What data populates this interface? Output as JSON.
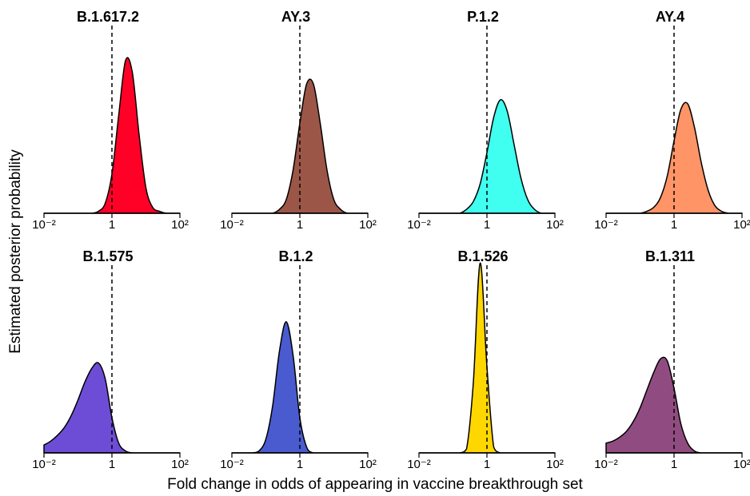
{
  "figure": {
    "xlabel": "Fold change in odds of appearing in vaccine breakthrough set",
    "ylabel": "Estimated posterior probability"
  },
  "chart_data": [
    {
      "type": "density",
      "title": "B.1.617.2",
      "color": "#ff0027",
      "log_x": true,
      "xlim": [
        0.01,
        100
      ],
      "xticks": [
        {
          "value": 0.01,
          "label": "10⁻²"
        },
        1,
        {
          "value": 100,
          "label": "10²"
        }
      ],
      "ylim": [
        0,
        1
      ],
      "vline": 1,
      "x": [
        0.01,
        0.0158,
        0.0251,
        0.0398,
        0.0631,
        0.1,
        0.158,
        0.251,
        0.398,
        0.631,
        1,
        1.58,
        2.51,
        3.98,
        6.31,
        10,
        15.8,
        25.1,
        39.8,
        63.1,
        100
      ],
      "values": [
        0,
        0,
        0,
        0,
        0,
        0,
        0,
        0,
        0.01,
        0.05,
        0.2,
        0.5,
        0.78,
        0.72,
        0.4,
        0.13,
        0.03,
        0.01,
        0,
        0,
        0
      ]
    },
    {
      "type": "density",
      "title": "AY.3",
      "color": "#9b5648",
      "log_x": true,
      "xlim": [
        0.01,
        100
      ],
      "xticks": [
        {
          "value": 0.01,
          "label": "10⁻²"
        },
        1,
        {
          "value": 100,
          "label": "10²"
        }
      ],
      "ylim": [
        0,
        1
      ],
      "vline": 1,
      "x": [
        0.01,
        0.0158,
        0.0251,
        0.0398,
        0.0631,
        0.1,
        0.158,
        0.251,
        0.398,
        0.631,
        1,
        1.58,
        2.51,
        3.98,
        6.31,
        10,
        15.8,
        25.1,
        39.8,
        63.1,
        100
      ],
      "values": [
        0,
        0,
        0,
        0,
        0,
        0,
        0,
        0.02,
        0.07,
        0.22,
        0.46,
        0.66,
        0.66,
        0.46,
        0.22,
        0.07,
        0.02,
        0,
        0,
        0,
        0
      ]
    },
    {
      "type": "density",
      "title": "P.1.2",
      "color": "#40fff0",
      "log_x": true,
      "xlim": [
        0.01,
        100
      ],
      "xticks": [
        {
          "value": 0.01,
          "label": "10⁻²"
        },
        1,
        {
          "value": 100,
          "label": "10²"
        }
      ],
      "ylim": [
        0,
        1
      ],
      "vline": 1,
      "x": [
        0.01,
        0.0158,
        0.0251,
        0.0398,
        0.0631,
        0.1,
        0.158,
        0.251,
        0.398,
        0.631,
        1,
        1.58,
        2.51,
        3.98,
        6.31,
        10,
        15.8,
        25.1,
        39.8,
        63.1,
        100
      ],
      "values": [
        0,
        0,
        0,
        0,
        0,
        0,
        0,
        0.02,
        0.06,
        0.15,
        0.31,
        0.49,
        0.58,
        0.52,
        0.35,
        0.18,
        0.07,
        0.02,
        0,
        0,
        0
      ]
    },
    {
      "type": "density",
      "title": "AY.4",
      "color": "#ff9466",
      "log_x": true,
      "xlim": [
        0.01,
        100
      ],
      "xticks": [
        {
          "value": 0.01,
          "label": "10⁻²"
        },
        1,
        {
          "value": 100,
          "label": "10²"
        }
      ],
      "ylim": [
        0,
        1
      ],
      "vline": 1,
      "x": [
        0.01,
        0.0158,
        0.0251,
        0.0398,
        0.0631,
        0.1,
        0.158,
        0.251,
        0.398,
        0.631,
        1,
        1.58,
        2.51,
        3.98,
        6.31,
        10,
        15.8,
        25.1,
        39.8,
        63.1,
        100
      ],
      "values": [
        0,
        0,
        0,
        0,
        0,
        0,
        0.01,
        0.03,
        0.08,
        0.19,
        0.37,
        0.53,
        0.56,
        0.44,
        0.26,
        0.12,
        0.04,
        0.01,
        0,
        0,
        0
      ]
    },
    {
      "type": "density",
      "title": "B.1.575",
      "color": "#6d4dd6",
      "log_x": true,
      "xlim": [
        0.01,
        100
      ],
      "xticks": [
        {
          "value": 0.01,
          "label": "10⁻²"
        },
        1,
        {
          "value": 100,
          "label": "10²"
        }
      ],
      "ylim": [
        0,
        1
      ],
      "vline": 1,
      "x": [
        0.01,
        0.0158,
        0.0251,
        0.0398,
        0.0631,
        0.1,
        0.158,
        0.251,
        0.398,
        0.631,
        1,
        1.58,
        2.51,
        3.98,
        6.31,
        10,
        15.8,
        25.1,
        39.8,
        63.1,
        100
      ],
      "values": [
        0.04,
        0.06,
        0.09,
        0.13,
        0.19,
        0.27,
        0.36,
        0.43,
        0.46,
        0.38,
        0.18,
        0.05,
        0.01,
        0,
        0,
        0,
        0,
        0,
        0,
        0,
        0
      ]
    },
    {
      "type": "density",
      "title": "B.1.2",
      "color": "#4a5bd0",
      "log_x": true,
      "xlim": [
        0.01,
        100
      ],
      "xticks": [
        {
          "value": 0.01,
          "label": "10⁻²"
        },
        1,
        {
          "value": 100,
          "label": "10²"
        }
      ],
      "ylim": [
        0,
        1
      ],
      "vline": 1,
      "x": [
        0.01,
        0.0158,
        0.0251,
        0.0398,
        0.0631,
        0.1,
        0.158,
        0.251,
        0.398,
        0.631,
        1,
        1.58,
        2.51,
        3.98,
        6.31,
        10,
        15.8,
        25.1,
        39.8,
        63.1,
        100
      ],
      "values": [
        0,
        0,
        0,
        0,
        0.01,
        0.07,
        0.24,
        0.52,
        0.67,
        0.5,
        0.18,
        0.03,
        0,
        0,
        0,
        0,
        0,
        0,
        0,
        0,
        0
      ]
    },
    {
      "type": "density",
      "title": "B.1.526",
      "color": "#ffd700",
      "log_x": true,
      "xlim": [
        0.01,
        100
      ],
      "xticks": [
        {
          "value": 0.01,
          "label": "10⁻²"
        },
        1,
        {
          "value": 100,
          "label": "10²"
        }
      ],
      "ylim": [
        0,
        1
      ],
      "vline": 1,
      "x": [
        0.01,
        0.0158,
        0.0251,
        0.0398,
        0.0631,
        0.1,
        0.158,
        0.251,
        0.398,
        0.631,
        1,
        1.58,
        2.51,
        3.98,
        6.31,
        10,
        15.8,
        25.1,
        39.8,
        63.1,
        100
      ],
      "values": [
        0,
        0,
        0,
        0,
        0,
        0,
        0,
        0.02,
        0.36,
        0.97,
        0.44,
        0.03,
        0,
        0,
        0,
        0,
        0,
        0,
        0,
        0,
        0
      ]
    },
    {
      "type": "density",
      "title": "B.1.311",
      "color": "#904c80",
      "log_x": true,
      "xlim": [
        0.01,
        100
      ],
      "xticks": [
        {
          "value": 0.01,
          "label": "10⁻²"
        },
        1,
        {
          "value": 100,
          "label": "10²"
        }
      ],
      "ylim": [
        0,
        1
      ],
      "vline": 1,
      "x": [
        0.01,
        0.0158,
        0.0251,
        0.0398,
        0.0631,
        0.1,
        0.158,
        0.251,
        0.398,
        0.631,
        1,
        1.58,
        2.51,
        3.98,
        6.31,
        10,
        15.8,
        25.1,
        39.8,
        63.1,
        100
      ],
      "values": [
        0.05,
        0.06,
        0.08,
        0.11,
        0.16,
        0.23,
        0.32,
        0.41,
        0.48,
        0.47,
        0.33,
        0.15,
        0.05,
        0.01,
        0,
        0,
        0,
        0,
        0,
        0,
        0
      ]
    }
  ]
}
